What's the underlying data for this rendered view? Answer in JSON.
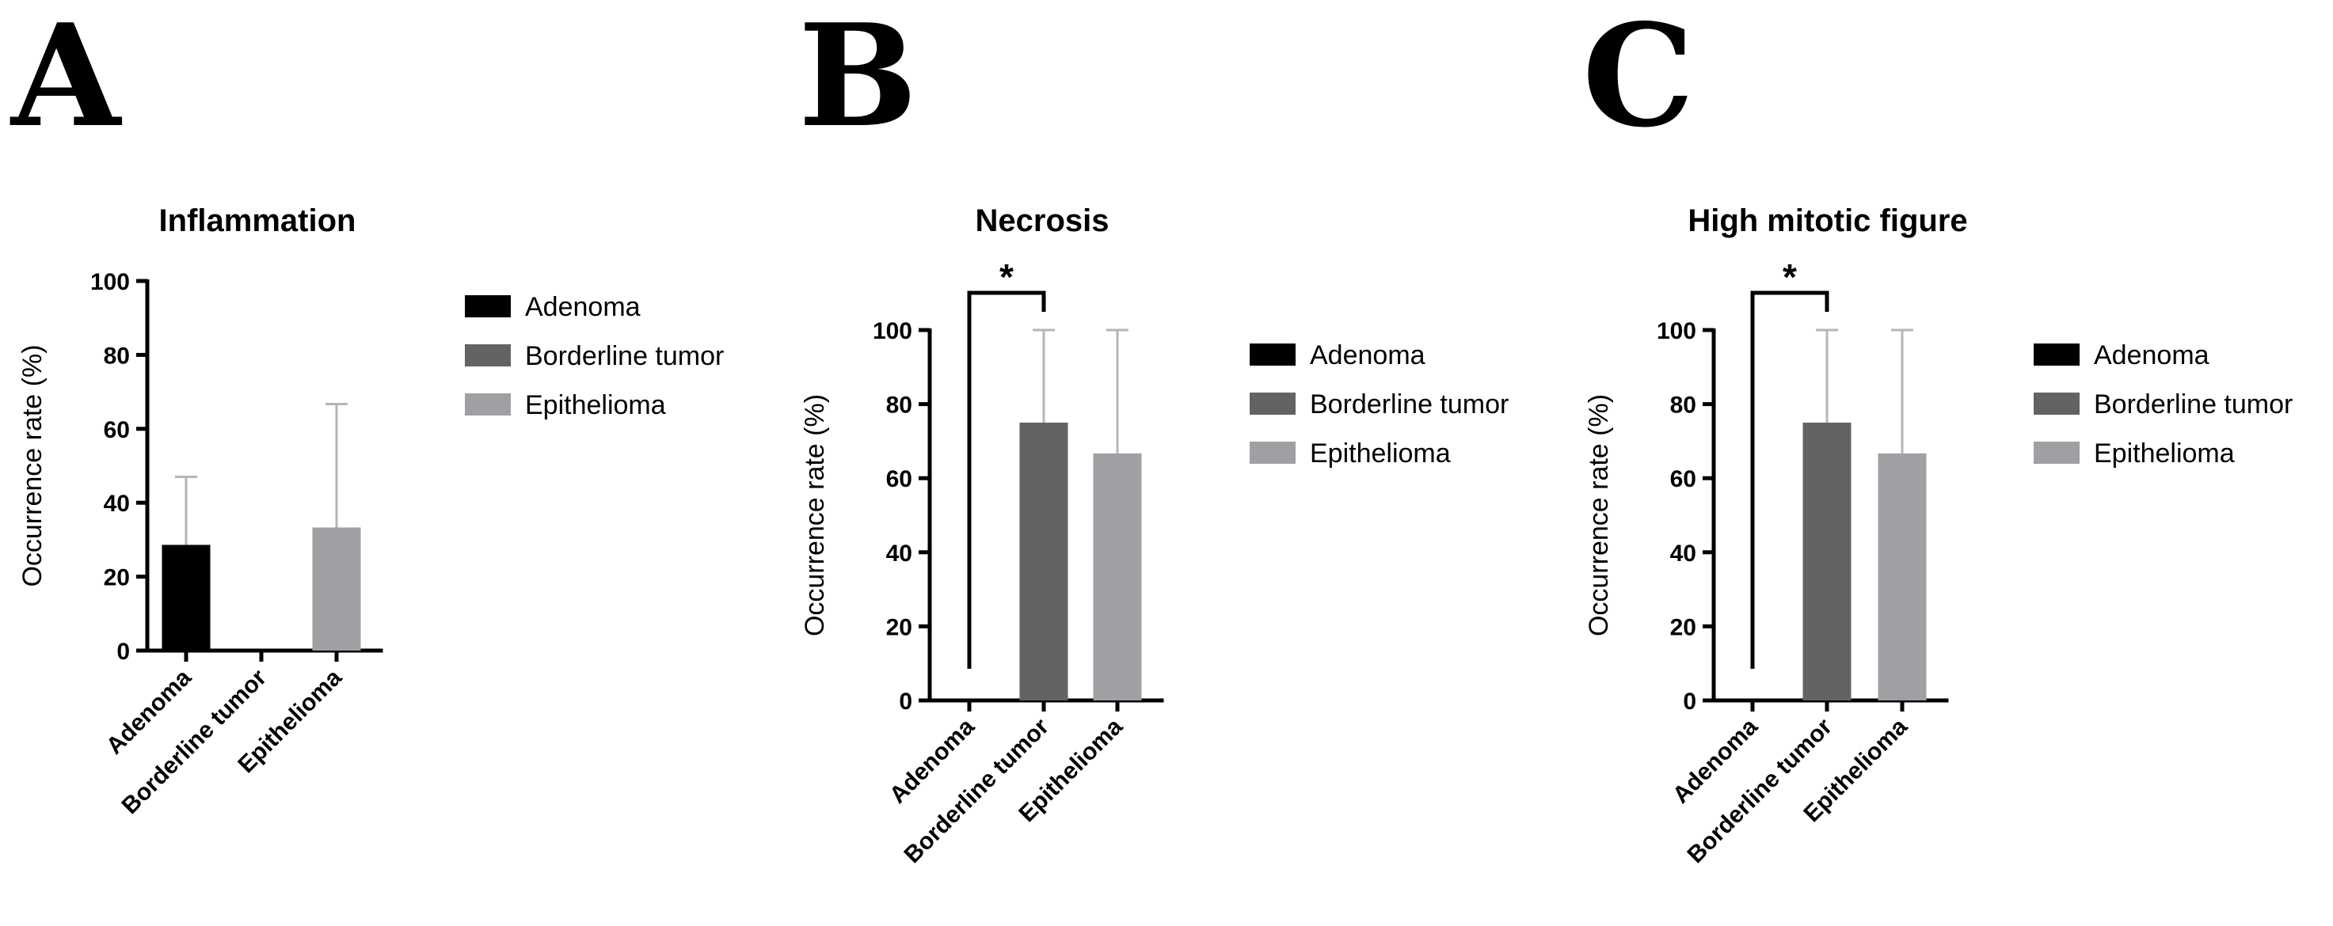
{
  "colors": {
    "adenoma": "#000000",
    "borderline": "#636363",
    "epithelioma": "#a0a0a4",
    "error_bar": "#b5b5b5",
    "axis": "#000000"
  },
  "chart_data": [
    {
      "panel": "A",
      "type": "bar",
      "title": "Inflammation",
      "ylabel": "Occurrence rate (%)",
      "xlabel": "",
      "ylim": [
        0,
        100
      ],
      "yticks": [
        0,
        20,
        40,
        60,
        80,
        100
      ],
      "categories": [
        "Adenoma",
        "Borderline tumor",
        "Epithelioma"
      ],
      "values": [
        28.6,
        0,
        33.3
      ],
      "error_upper": [
        47,
        0,
        66.7
      ],
      "legend": [
        "Adenoma",
        "Borderline tumor",
        "Epithelioma"
      ],
      "legend_position": "right",
      "significance": null
    },
    {
      "panel": "B",
      "type": "bar",
      "title": "Necrosis",
      "ylabel": "Occurrence rate (%)",
      "xlabel": "",
      "ylim": [
        0,
        100
      ],
      "yticks": [
        0,
        20,
        40,
        60,
        80,
        100
      ],
      "categories": [
        "Adenoma",
        "Borderline tumor",
        "Epithelioma"
      ],
      "values": [
        0,
        75,
        66.7
      ],
      "error_upper": [
        0,
        100,
        100
      ],
      "legend": [
        "Adenoma",
        "Borderline tumor",
        "Epithelioma"
      ],
      "legend_position": "right",
      "significance": {
        "from": "Adenoma",
        "to": "Borderline tumor",
        "label": "*"
      }
    },
    {
      "panel": "C",
      "type": "bar",
      "title": "High mitotic figure",
      "ylabel": "Occurrence rate (%)",
      "xlabel": "",
      "ylim": [
        0,
        100
      ],
      "yticks": [
        0,
        20,
        40,
        60,
        80,
        100
      ],
      "categories": [
        "Adenoma",
        "Borderline tumor",
        "Epithelioma"
      ],
      "values": [
        0,
        75,
        66.7
      ],
      "error_upper": [
        0,
        100,
        100
      ],
      "legend": [
        "Adenoma",
        "Borderline tumor",
        "Epithelioma"
      ],
      "legend_position": "right",
      "significance": {
        "from": "Adenoma",
        "to": "Borderline tumor",
        "label": "*"
      }
    }
  ]
}
